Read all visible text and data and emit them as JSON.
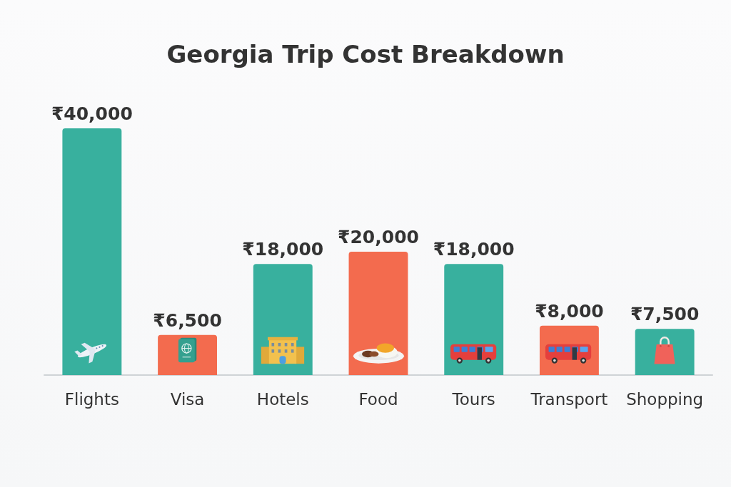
{
  "chart_data": {
    "type": "bar",
    "title": "Georgia Trip Cost Breakdown",
    "categories": [
      "Flights",
      "Visa",
      "Hotels",
      "Food",
      "Tours",
      "Transport",
      "Shopping"
    ],
    "values": [
      40000,
      6500,
      18000,
      20000,
      18000,
      8000,
      7500
    ],
    "colors": [
      "#38b09e",
      "#f36b4e",
      "#38b09e",
      "#f36b4e",
      "#38b09e",
      "#f36b4e",
      "#38b09e"
    ],
    "value_labels": [
      "₹40,000",
      "₹6,500",
      "₹18,000",
      "₹20,000",
      "₹18,000",
      "₹8,000",
      "₹7,500"
    ]
  }
}
